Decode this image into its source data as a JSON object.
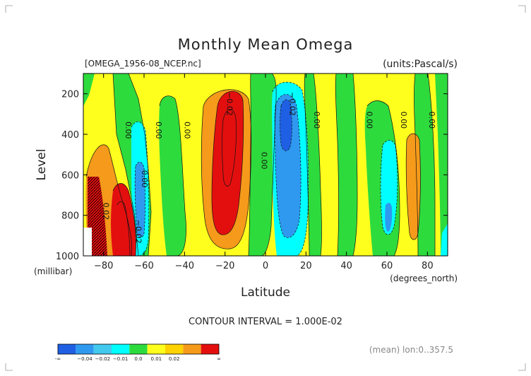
{
  "chart_data": {
    "type": "heatmap",
    "title": "Monthly Mean Omega",
    "source_label": "[OMEGA_1956-08_NCEP.nc]",
    "units_label": "(units:Pascal/s)",
    "xlabel": "Latitude",
    "x_unit": "(degrees_north)",
    "ylabel": "Level",
    "y_unit": "(millibar)",
    "xlim": [
      -90,
      90
    ],
    "ylim": [
      1000,
      100
    ],
    "x_ticks": [
      -80,
      -60,
      -40,
      -20,
      0,
      20,
      40,
      60,
      80
    ],
    "x_tick_labels": [
      "−80",
      "−60",
      "−40",
      "−20",
      "0",
      "20",
      "40",
      "60",
      "80"
    ],
    "y_ticks": [
      200,
      400,
      600,
      800,
      1000
    ],
    "y_tick_labels": [
      "200",
      "400",
      "600",
      "800",
      "1000"
    ],
    "contour_interval_text": "CONTOUR INTERVAL = 1.000E-02",
    "mean_note": "(mean) lon:0..357.5",
    "colorbar": {
      "labels": [
        "-∞",
        "−0.04",
        "−0.02",
        "−0.01",
        "0.0",
        "0.01",
        "0.02",
        "∞"
      ],
      "colors": [
        "#1f5fe3",
        "#2f99f0",
        "#43c8ee",
        "#00ffff",
        "#2edb3d",
        "#ffff1e",
        "#ffd200",
        "#f59a1a",
        "#e30f0f"
      ]
    },
    "contour_labels": [
      {
        "text": "0.00",
        "lat": -69,
        "lev": 380
      },
      {
        "text": "0.00",
        "lat": -54,
        "lev": 380
      },
      {
        "text": "0.00",
        "lat": -40,
        "lev": 380
      },
      {
        "text": "0.00",
        "lat": -61,
        "lev": 620
      },
      {
        "text": "0.00",
        "lat": -2,
        "lev": 530
      },
      {
        "text": "0.00",
        "lat": 24,
        "lev": 330
      },
      {
        "text": "0.00",
        "lat": 50,
        "lev": 330
      },
      {
        "text": "0.00",
        "lat": 67,
        "lev": 330
      },
      {
        "text": "0.00",
        "lat": 81,
        "lev": 330
      },
      {
        "text": "−0.02",
        "lat": -19,
        "lev": 250
      },
      {
        "text": "−0.02",
        "lat": 12,
        "lev": 250
      },
      {
        "text": "0.02",
        "lat": -80,
        "lev": 780
      },
      {
        "text": "−0.02",
        "lat": -64,
        "lev": 880
      }
    ],
    "fields": [
      {
        "level": "-0.02",
        "color": "#e30f0f",
        "lat": -75,
        "lev": 860,
        "dlat": 5,
        "dlev": 230
      },
      {
        "level": "-0.02",
        "color": "#e30f0f",
        "lat": -86,
        "lev": 890,
        "dlat": 4,
        "dlev": 200
      },
      {
        "level": "-0.03",
        "color": "#e30f0f",
        "lat": -18,
        "lev": 520,
        "dlat": 6,
        "dlev": 300
      },
      {
        "level": "0.02",
        "color": "#1f5fe3",
        "lat": 11,
        "lev": 320,
        "dlat": 3,
        "dlev": 120
      },
      {
        "level": "0.01",
        "color": "#2f99f0",
        "lat": 11,
        "lev": 560,
        "dlat": 6,
        "dlev": 300
      },
      {
        "level": "0.01",
        "color": "#2f99f0",
        "lat": -63,
        "lev": 750,
        "dlat": 3,
        "dlev": 150
      }
    ]
  }
}
